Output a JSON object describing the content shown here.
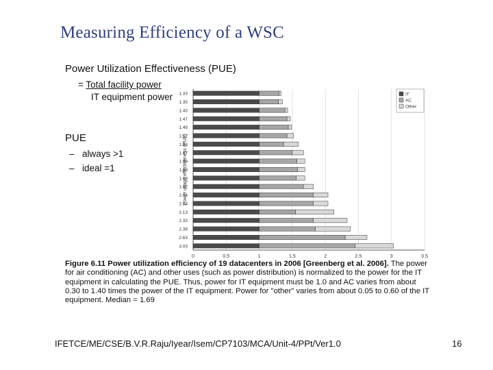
{
  "slide": {
    "title": "Measuring Efficiency of a WSC",
    "pue_title": "Power Utilization Effectiveness (PUE)",
    "formula_eq": "=",
    "formula_numerator": "Total facility power",
    "formula_denominator": "IT equipment power",
    "pue_heading": "PUE",
    "bullets": [
      {
        "dash": "–",
        "text": "always >1"
      },
      {
        "dash": "–",
        "text": "ideal =1"
      }
    ],
    "caption_bold": "Figure 6.11 Power utilization efficiency of 19 datacenters in 2006 [Greenberg et al. 2006].",
    "caption_text": " The power for air conditioning (AC) and other uses (such as power distribution) is normalized to the power for the IT equipment in calculating the PUE. Thus, power for IT equipment must be 1.0 and AC varies from about 0.30 to 1.40 times the power of the IT equipment. Power for \"other\" varies from about 0.05 to 0.60 of the IT equipment. Median = 1.69",
    "footer": "IFETCE/ME/CSE/B.V.R.Raju/Iyear/Isem/CP7103/MCA/Unit-4/PPt/Ver1.0",
    "page_number": "16"
  },
  "colors": {
    "title": "#2d3f7f",
    "it": "#4a4a4a",
    "ac": "#a6a6a6",
    "other": "#d9d9d9",
    "grid": "#e2e2e2"
  },
  "chart_data": {
    "type": "bar",
    "orientation": "horizontal",
    "stacked": true,
    "ylabel": "Power usage effectiveness (PUE)",
    "xlim": [
      0,
      3.5
    ],
    "xticks": [
      "0",
      "0.5",
      "1",
      "1.5",
      "2",
      "2.5",
      "3",
      "3.5"
    ],
    "grid": true,
    "legend_position": "top-right",
    "categories": [
      "1.33",
      "1.35",
      "1.43",
      "1.47",
      "1.49",
      "1.52",
      "1.59",
      "1.67",
      "1.69",
      "1.69",
      "1.69",
      "1.82",
      "2.04",
      "2.04",
      "2.13",
      "2.33",
      "2.38",
      "2.63",
      "3.03"
    ],
    "series": [
      {
        "name": "IT",
        "values": [
          1,
          1,
          1,
          1,
          1,
          1,
          1,
          1,
          1,
          1,
          1,
          1,
          1,
          1,
          1,
          1,
          1,
          1,
          1
        ]
      },
      {
        "name": "AC",
        "values": [
          0.3,
          0.29,
          0.39,
          0.42,
          0.44,
          0.42,
          0.37,
          0.5,
          0.57,
          0.58,
          0.56,
          0.67,
          0.82,
          0.82,
          0.55,
          0.82,
          0.85,
          1.3,
          1.45
        ]
      },
      {
        "name": "Other",
        "values": [
          0.03,
          0.06,
          0.04,
          0.05,
          0.05,
          0.1,
          0.22,
          0.17,
          0.12,
          0.11,
          0.13,
          0.15,
          0.22,
          0.22,
          0.58,
          0.51,
          0.53,
          0.33,
          0.58
        ]
      }
    ]
  }
}
